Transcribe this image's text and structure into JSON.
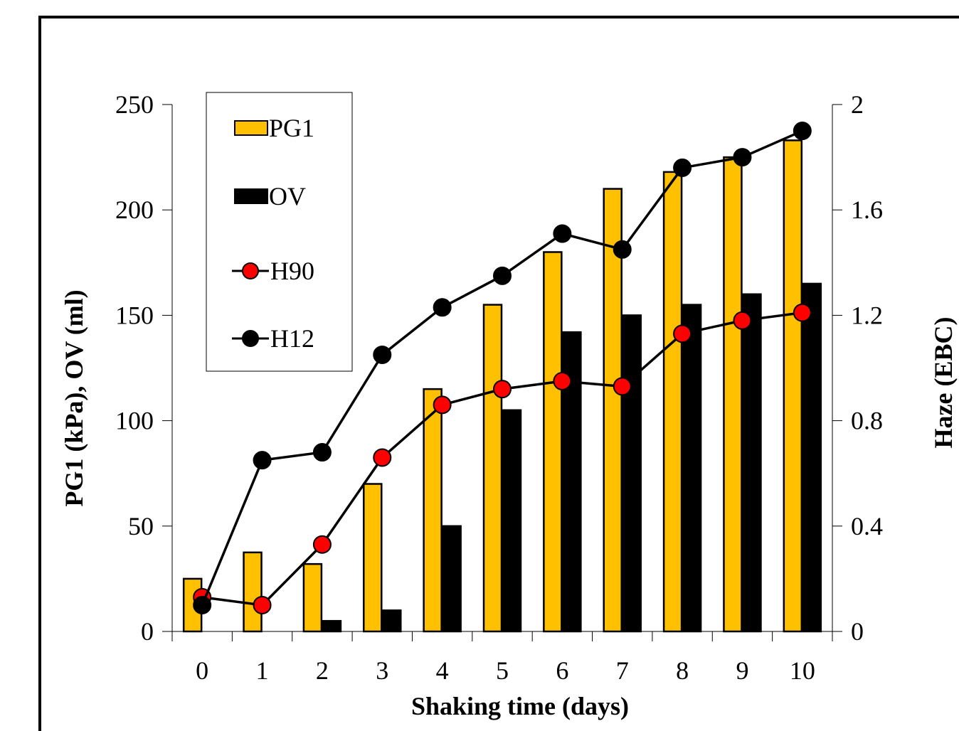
{
  "chart_data": {
    "type": "bar",
    "categories": [
      "0",
      "1",
      "2",
      "3",
      "4",
      "5",
      "6",
      "7",
      "8",
      "9",
      "10"
    ],
    "xlabel": "Shaking time (days)",
    "ylabel": "PG1 (kPa), OV (ml)",
    "y2label": "Haze (EBC)",
    "ylim": [
      0,
      250
    ],
    "y2lim": [
      0,
      2
    ],
    "yticks": [
      "0",
      "50",
      "100",
      "150",
      "200",
      "250"
    ],
    "y2ticks": [
      "0",
      "0.4",
      "0.8",
      "1.2",
      "1.6",
      "2"
    ],
    "grid": false,
    "legend_position": "top-left",
    "series": [
      {
        "name": "PG1",
        "kind": "bar",
        "axis": "left",
        "color": "#FFC000",
        "values": [
          25,
          37.5,
          32,
          70,
          115,
          155,
          180,
          210,
          218,
          225,
          233
        ]
      },
      {
        "name": "OV",
        "kind": "bar",
        "axis": "left",
        "color": "#000000",
        "values": [
          0,
          0,
          5,
          10,
          50,
          105,
          142,
          150,
          155,
          160,
          165
        ]
      },
      {
        "name": "H90",
        "kind": "line",
        "axis": "right",
        "color": "#FF0000",
        "values": [
          0.13,
          0.1,
          0.33,
          0.66,
          0.86,
          0.92,
          0.95,
          0.93,
          1.13,
          1.18,
          1.21
        ]
      },
      {
        "name": "H12",
        "kind": "line",
        "axis": "right",
        "color": "#000000",
        "values": [
          0.1,
          0.65,
          0.68,
          1.05,
          1.23,
          1.35,
          1.51,
          1.45,
          1.76,
          1.8,
          1.9
        ]
      }
    ]
  }
}
